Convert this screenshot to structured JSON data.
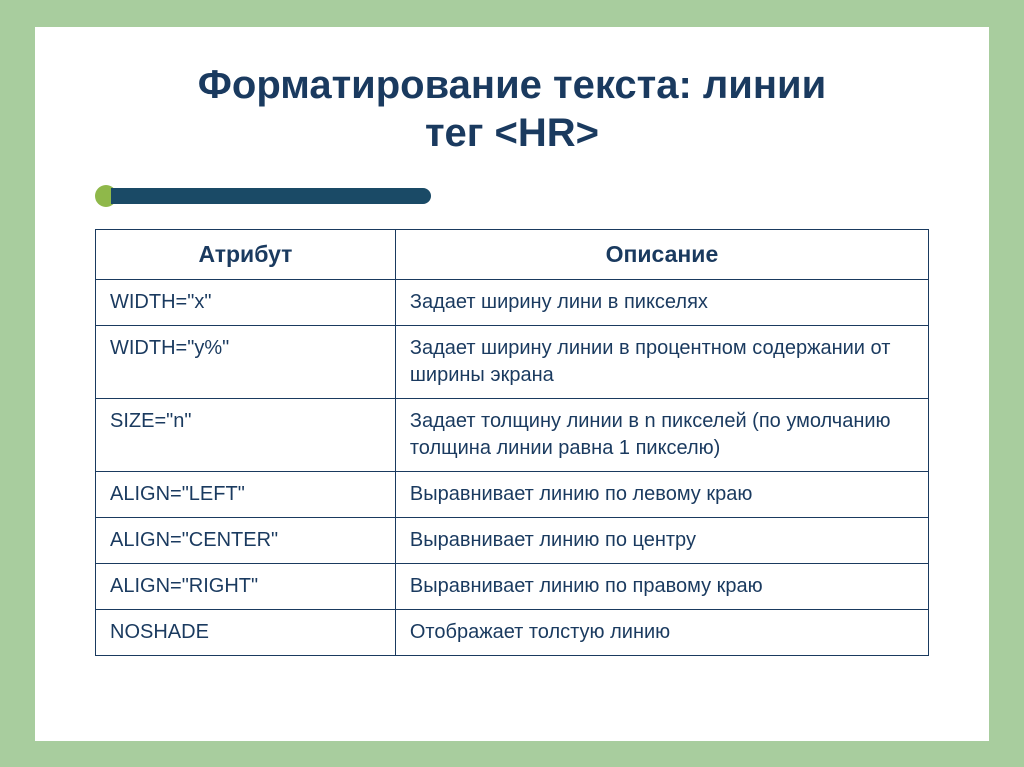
{
  "title_line1": "Форматирование текста: линии",
  "title_line2": "тег <HR>",
  "table": {
    "header_attr": "Атрибут",
    "header_desc": "Описание",
    "rows": [
      {
        "attr": "WIDTH=\"x\"",
        "desc": "Задает ширину лини в пикселях"
      },
      {
        "attr": "WIDTH=\"y%\"",
        "desc": "Задает ширину линии в процентном содержании от ширины экрана"
      },
      {
        "attr": "SIZE=\"n\"",
        "desc": "Задает толщину линии в n пикселей (по умолчанию толщина линии равна 1 пикселю)"
      },
      {
        "attr": "ALIGN=\"LEFT\"",
        "desc": "Выравнивает линию по левому краю"
      },
      {
        "attr": "ALIGN=\"CENTER\"",
        "desc": "Выравнивает линию по центру"
      },
      {
        "attr": "ALIGN=\"RIGHT\"",
        "desc": "Выравнивает линию по правому краю"
      },
      {
        "attr": "NOSHADE",
        "desc": "Отображает толстую линию"
      }
    ]
  },
  "colors": {
    "page_bg": "#a8cd9e",
    "slide_bg": "#ffffff",
    "text": "#1a3a5f",
    "dot": "#8fb84a",
    "bar": "#1a4a66",
    "border": "#1a3a5f"
  }
}
